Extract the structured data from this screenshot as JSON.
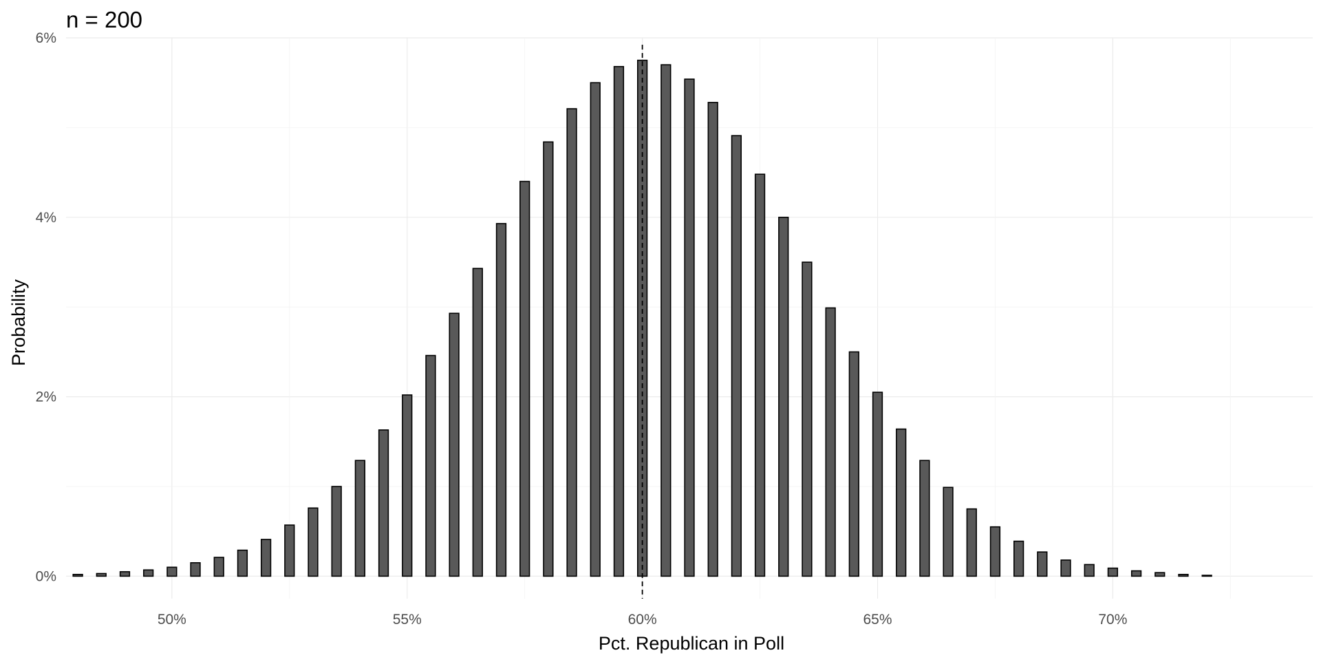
{
  "chart_data": {
    "type": "bar",
    "title": "n = 200",
    "xlabel": "Pct. Republican in Poll",
    "ylabel": "Probability",
    "xlim": [
      0.4775,
      0.7425
    ],
    "ylim": [
      -0.0025,
      0.06
    ],
    "x_ticks": [
      {
        "value": 0.5,
        "label": "50%"
      },
      {
        "value": 0.55,
        "label": "55%"
      },
      {
        "value": 0.6,
        "label": "60%"
      },
      {
        "value": 0.65,
        "label": "65%"
      },
      {
        "value": 0.7,
        "label": "70%"
      }
    ],
    "y_ticks": [
      {
        "value": 0.0,
        "label": "0%"
      },
      {
        "value": 0.02,
        "label": "2%"
      },
      {
        "value": 0.04,
        "label": "4%"
      },
      {
        "value": 0.06,
        "label": "6%"
      }
    ],
    "grid": true,
    "reference_line": {
      "x": 0.6,
      "style": "dashed"
    },
    "bar_fill": "#595959",
    "bar_stroke": "#000000",
    "bar_width": 0.002,
    "x": [
      0.48,
      0.485,
      0.49,
      0.495,
      0.5,
      0.505,
      0.51,
      0.515,
      0.52,
      0.525,
      0.53,
      0.535,
      0.54,
      0.545,
      0.55,
      0.555,
      0.56,
      0.565,
      0.57,
      0.575,
      0.58,
      0.585,
      0.59,
      0.595,
      0.6,
      0.605,
      0.61,
      0.615,
      0.62,
      0.625,
      0.63,
      0.635,
      0.64,
      0.645,
      0.65,
      0.655,
      0.66,
      0.665,
      0.67,
      0.675,
      0.68,
      0.685,
      0.69,
      0.695,
      0.7,
      0.705,
      0.71,
      0.715,
      0.72
    ],
    "values": [
      0.0002,
      0.0003,
      0.0005,
      0.0007,
      0.001,
      0.0015,
      0.0021,
      0.0029,
      0.0041,
      0.0057,
      0.0076,
      0.01,
      0.0129,
      0.0163,
      0.0202,
      0.0246,
      0.0293,
      0.0343,
      0.0393,
      0.044,
      0.0484,
      0.0521,
      0.055,
      0.0568,
      0.0575,
      0.057,
      0.0554,
      0.0528,
      0.0491,
      0.0448,
      0.04,
      0.035,
      0.0299,
      0.025,
      0.0205,
      0.0164,
      0.0129,
      0.0099,
      0.0075,
      0.0055,
      0.0039,
      0.0027,
      0.0018,
      0.0013,
      0.0009,
      0.0006,
      0.0004,
      0.0002,
      0.0001
    ]
  }
}
